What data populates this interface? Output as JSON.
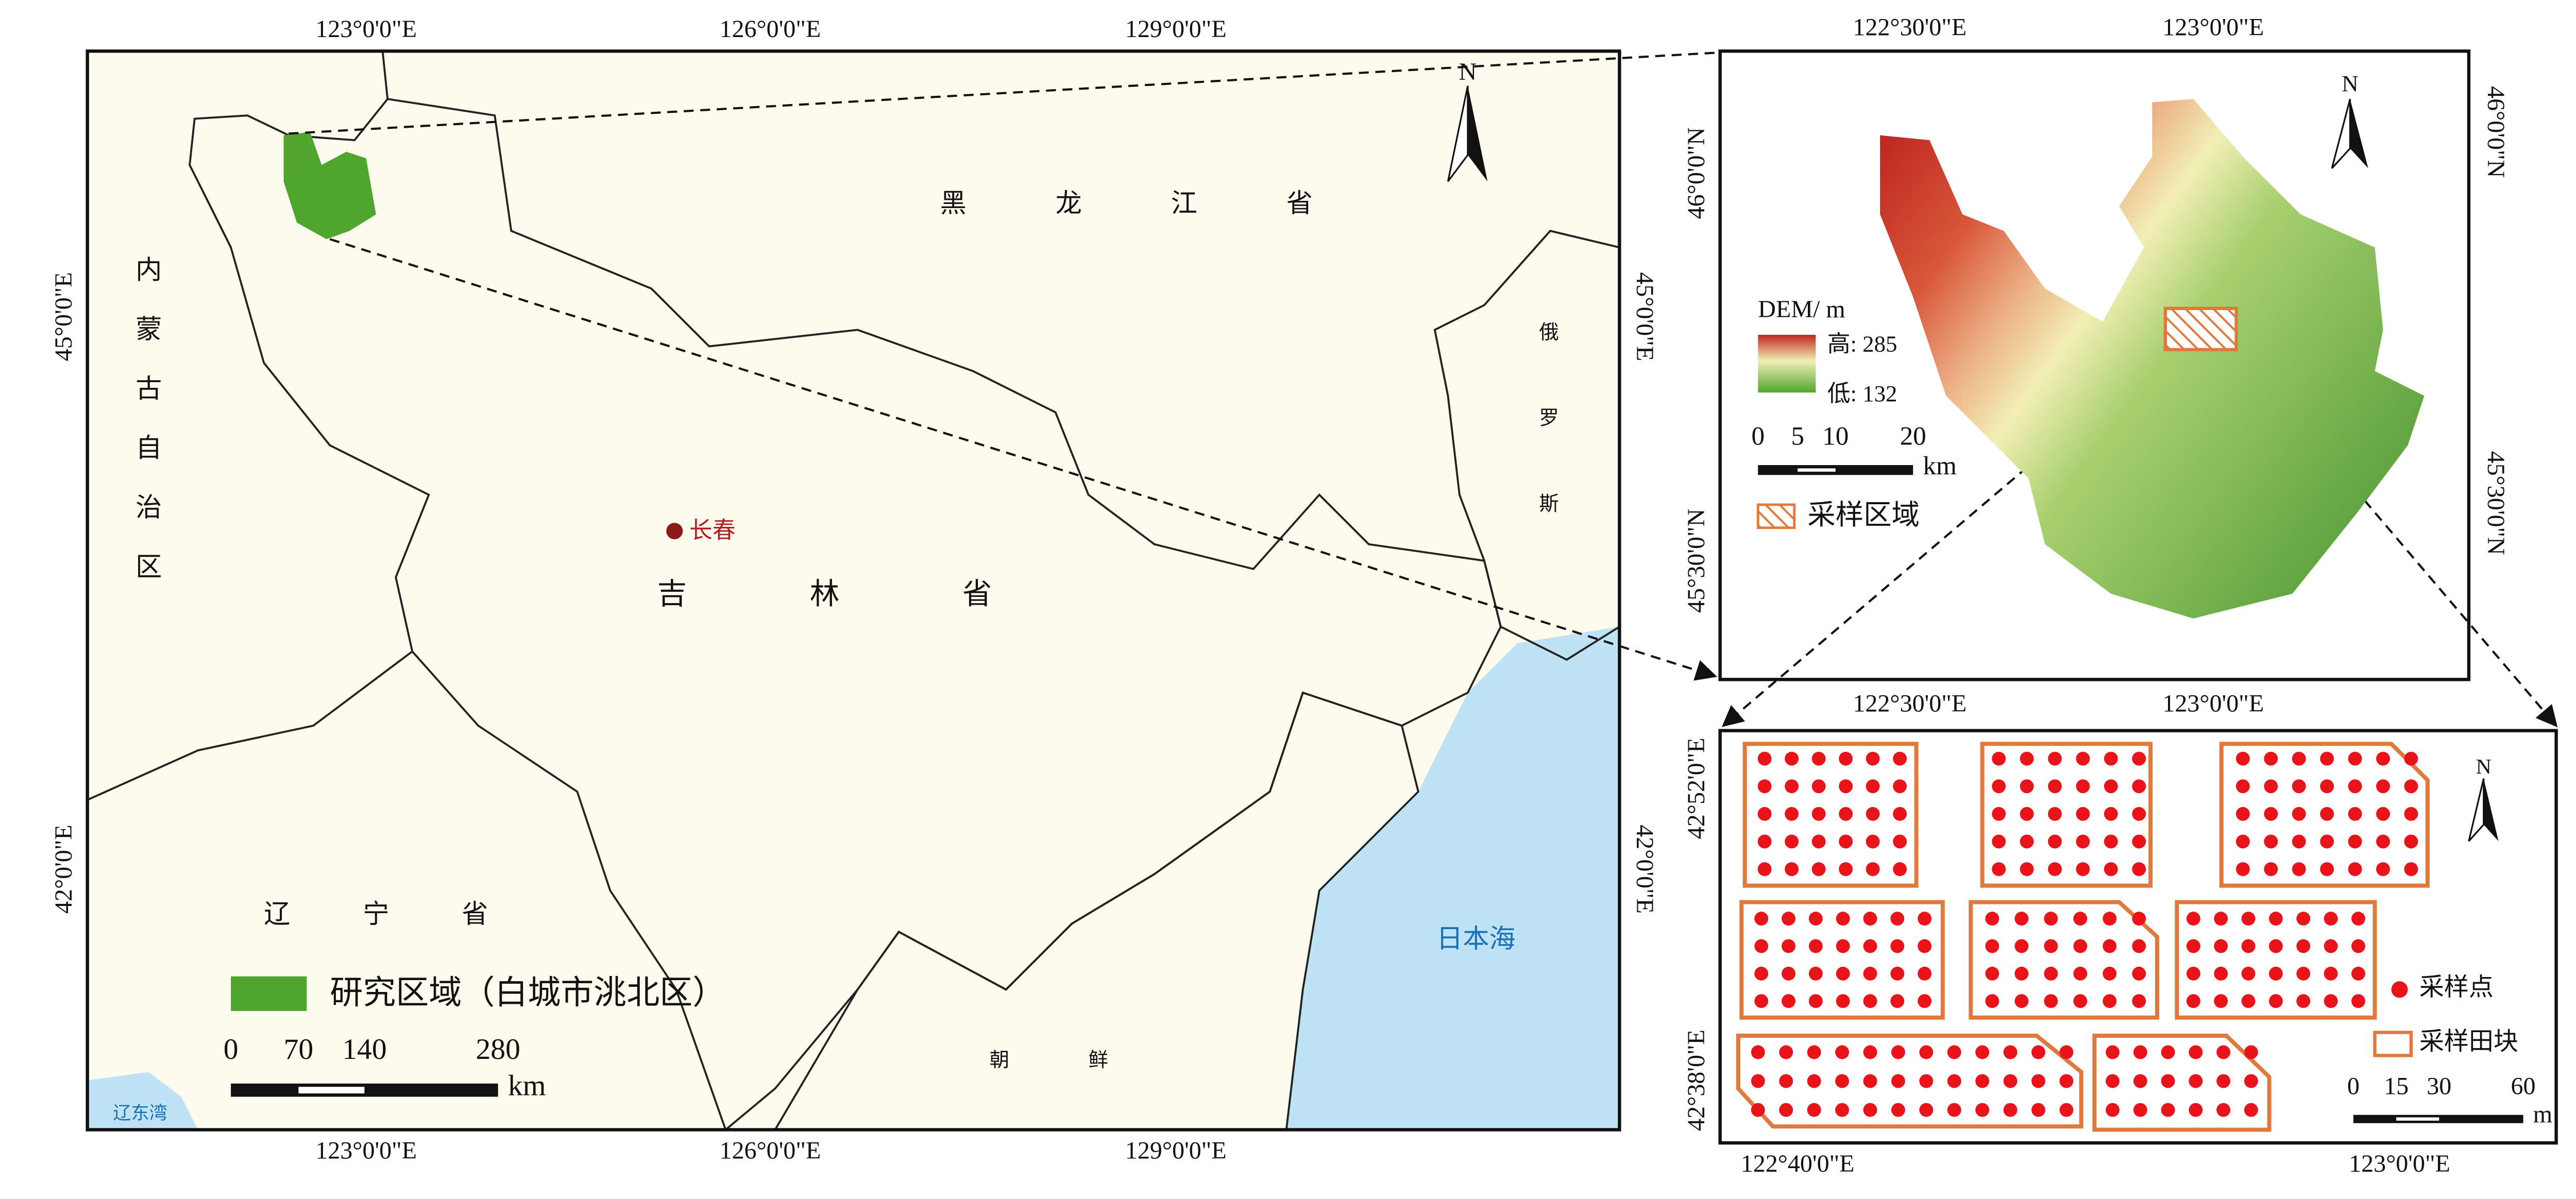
{
  "main_map": {
    "top_ticks": [
      "123°0'0\"E",
      "126°0'0\"E",
      "129°0'0\"E"
    ],
    "bottom_ticks": [
      "123°0'0\"E",
      "126°0'0\"E",
      "129°0'0\"E"
    ],
    "left_ticks": [
      "45°0'0\"E",
      "42°0'0\"E"
    ],
    "right_ticks": [
      "45°0'0\"E",
      "42°0'0\"E"
    ],
    "labels": {
      "heilongjiang": "黑 龙 江 省",
      "inner_mongolia": "内蒙古自治区",
      "jilin": "吉 林 省",
      "liaoning": "辽 宁 省",
      "russia": "俄罗斯",
      "korea": "朝 鲜",
      "sea": "日本海",
      "bay": "辽东湾",
      "city": "长春"
    },
    "north": "N",
    "legend": "研究区域（白城市洮北区）",
    "scale": [
      "0",
      "70",
      "140",
      "280"
    ],
    "scale_unit": "km"
  },
  "dem_map": {
    "top_ticks": [
      "122°30'0\"E",
      "123°0'0\"E"
    ],
    "bottom_ticks": [
      "122°30'0\"E",
      "123°0'0\"E"
    ],
    "left_ticks": [
      "46°0'0\"N",
      "45°30'0\"N"
    ],
    "right_ticks": [
      "46°0'0\"N",
      "45°30'0\"N"
    ],
    "north": "N",
    "legend_title": "DEM/ m",
    "legend_high": "高: 285",
    "legend_low": "低: 132",
    "scale": [
      "0",
      "5",
      "10",
      "20"
    ],
    "scale_unit": "km",
    "sampling_region": "采样区域"
  },
  "sampling_map": {
    "left_ticks": [
      "42°52'0\"E",
      "42°38'0\"E"
    ],
    "bottom_ticks": [
      "122°40'0\"E",
      "123°0'0\"E"
    ],
    "north": "N",
    "legend_point": "采样点",
    "legend_field": "采样田块",
    "scale": [
      "0",
      "15",
      "30",
      "60"
    ],
    "scale_unit": "m"
  }
}
